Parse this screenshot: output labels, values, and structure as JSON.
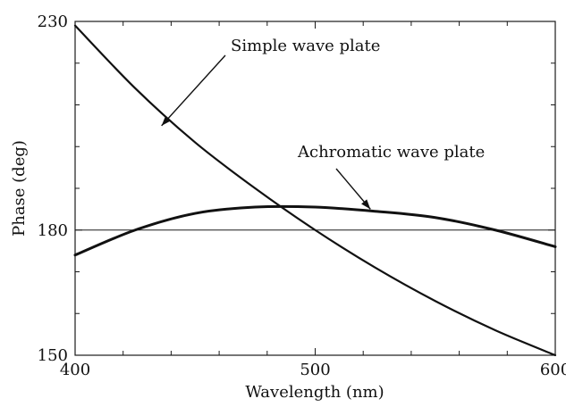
{
  "chart_data": {
    "type": "line",
    "title": "",
    "xlabel": "Wavelength (nm)",
    "ylabel": "Phase (deg)",
    "xlim": [
      400,
      600
    ],
    "ylim": [
      150,
      230
    ],
    "x_ticks": [
      400,
      500,
      600
    ],
    "y_ticks": [
      150,
      180,
      230
    ],
    "x_tick_labels": [
      "400",
      "500",
      "600"
    ],
    "y_tick_labels": [
      "150",
      "180",
      "230"
    ],
    "grid": false,
    "series": [
      {
        "name": "Simple wave plate",
        "x": [
          400,
          425,
          450,
          475,
          500,
          525,
          550,
          575,
          600
        ],
        "y": [
          229,
          214,
          201,
          190,
          180,
          171,
          163,
          156,
          150
        ]
      },
      {
        "name": "Achromatic wave plate",
        "x": [
          400,
          425,
          450,
          475,
          500,
          525,
          550,
          575,
          600
        ],
        "y": [
          174,
          180,
          184,
          185.5,
          185.5,
          184.5,
          183,
          180,
          176
        ]
      }
    ],
    "reference_lines": [
      {
        "axis": "y",
        "value": 180
      }
    ],
    "annotations": [
      {
        "text": "Simple wave plate",
        "series": "Simple wave plate",
        "point_x": 436,
        "point_y": 205
      },
      {
        "text": "Achromatic wave plate",
        "series": "Achromatic wave plate",
        "point_x": 523,
        "point_y": 185
      }
    ]
  }
}
